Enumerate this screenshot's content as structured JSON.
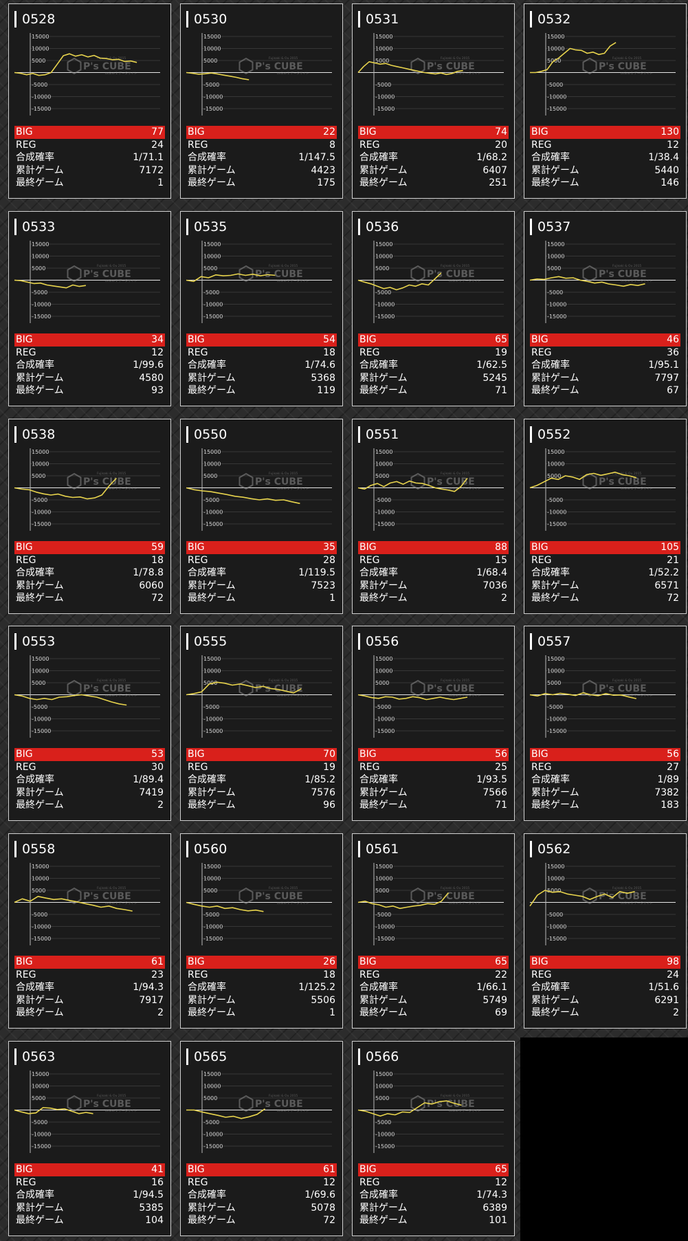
{
  "labels": {
    "big": "BIG",
    "reg": "REG",
    "rate": "合成確率",
    "total": "累計ゲーム",
    "last": "最終ゲーム"
  },
  "watermark": {
    "text": "P's CUBE",
    "small_top": "Fujisaki & Ou 2015",
    "small_bottom": "online 1 データサイト"
  },
  "axis_ticks": [
    "15000",
    "10000",
    "5000",
    "",
    "-5000",
    "-10000",
    "-15000"
  ],
  "colors": {
    "line": "#e8d44d",
    "big_bg": "#d9201b",
    "card_bg": "#1b1b1b"
  },
  "machines": [
    {
      "id": "0528",
      "big": "77",
      "reg": "24",
      "rate": "1/71.1",
      "total": "7172",
      "last": "1",
      "chart_data": {
        "type": "line",
        "ylim": [
          -15000,
          15000
        ],
        "x_end": 0.84,
        "values": [
          0,
          -300,
          -900,
          -400,
          -1200,
          -900,
          0,
          3500,
          7000,
          7800,
          6800,
          7400,
          6500,
          7100,
          6000,
          5800,
          5300,
          5500,
          4600,
          4800,
          4200
        ]
      }
    },
    {
      "id": "0530",
      "big": "22",
      "reg": "8",
      "rate": "1/147.5",
      "total": "4423",
      "last": "175",
      "chart_data": {
        "type": "line",
        "ylim": [
          -15000,
          15000
        ],
        "x_end": 0.43,
        "values": [
          0,
          -300,
          -700,
          -500,
          -200,
          -600,
          -1100,
          -1500,
          -2000,
          -2600,
          -3000
        ]
      }
    },
    {
      "id": "0531",
      "big": "74",
      "reg": "20",
      "rate": "1/68.2",
      "total": "6407",
      "last": "251",
      "chart_data": {
        "type": "line",
        "ylim": [
          -15000,
          15000
        ],
        "x_end": 0.72,
        "values": [
          0,
          2500,
          4500,
          4000,
          3500,
          3800,
          3000,
          2500,
          2000,
          1500,
          1000,
          500,
          0,
          -300,
          -600,
          -200,
          -800,
          -400,
          500,
          800
        ]
      }
    },
    {
      "id": "0532",
      "big": "130",
      "reg": "12",
      "rate": "1/38.4",
      "total": "5440",
      "last": "146",
      "chart_data": {
        "type": "line",
        "ylim": [
          -15000,
          15000
        ],
        "x_end": 0.59,
        "values": [
          0,
          0,
          500,
          1200,
          4500,
          6000,
          8000,
          10000,
          9400,
          9200,
          8000,
          8500,
          7500,
          8000,
          11000,
          12500
        ]
      }
    },
    {
      "id": "0533",
      "big": "34",
      "reg": "12",
      "rate": "1/99.6",
      "total": "4580",
      "last": "93",
      "chart_data": {
        "type": "line",
        "ylim": [
          -15000,
          15000
        ],
        "x_end": 0.49,
        "values": [
          0,
          -200,
          -800,
          -1400,
          -1200,
          -2000,
          -2400,
          -2800,
          -3200,
          -2000,
          -2600,
          -2200
        ]
      }
    },
    {
      "id": "0535",
      "big": "54",
      "reg": "18",
      "rate": "1/74.6",
      "total": "5368",
      "last": "119",
      "chart_data": {
        "type": "line",
        "ylim": [
          -15000,
          15000
        ],
        "x_end": 0.61,
        "values": [
          0,
          -500,
          1500,
          1000,
          2200,
          1800,
          2000,
          2600,
          2000,
          2500,
          1800,
          2300,
          2000
        ]
      }
    },
    {
      "id": "0536",
      "big": "65",
      "reg": "19",
      "rate": "1/62.5",
      "total": "5245",
      "last": "71",
      "chart_data": {
        "type": "line",
        "ylim": [
          -15000,
          15000
        ],
        "x_end": 0.57,
        "values": [
          0,
          -800,
          -1500,
          -2500,
          -3500,
          -3000,
          -4000,
          -3200,
          -2000,
          -2500,
          -1500,
          -2000,
          500,
          3000
        ]
      }
    },
    {
      "id": "0537",
      "big": "46",
      "reg": "36",
      "rate": "1/95.1",
      "total": "7797",
      "last": "67",
      "chart_data": {
        "type": "line",
        "ylim": [
          -15000,
          15000
        ],
        "x_end": 0.79,
        "values": [
          0,
          500,
          300,
          1000,
          1500,
          800,
          1000,
          0,
          -500,
          -1200,
          -800,
          -1600,
          -2000,
          -2500,
          -1800,
          -2200,
          -1500
        ]
      }
    },
    {
      "id": "0538",
      "big": "59",
      "reg": "18",
      "rate": "1/78.8",
      "total": "6060",
      "last": "72",
      "chart_data": {
        "type": "line",
        "ylim": [
          -15000,
          15000
        ],
        "x_end": 0.7,
        "values": [
          0,
          -500,
          -800,
          -1800,
          -2500,
          -3000,
          -2600,
          -3500,
          -4000,
          -3800,
          -4600,
          -4200,
          -3000,
          800,
          4000
        ]
      }
    },
    {
      "id": "0550",
      "big": "35",
      "reg": "28",
      "rate": "1/119.5",
      "total": "7523",
      "last": "1",
      "chart_data": {
        "type": "line",
        "ylim": [
          -15000,
          15000
        ],
        "x_end": 0.78,
        "values": [
          0,
          -800,
          -1300,
          -1600,
          -2200,
          -2800,
          -3500,
          -3900,
          -4500,
          -5000,
          -4600,
          -5200,
          -5000,
          -5800,
          -6500
        ]
      }
    },
    {
      "id": "0551",
      "big": "88",
      "reg": "15",
      "rate": "1/68.4",
      "total": "7036",
      "last": "2",
      "chart_data": {
        "type": "line",
        "ylim": [
          -15000,
          15000
        ],
        "x_end": 0.75,
        "values": [
          0,
          -500,
          1000,
          1800,
          500,
          2000,
          2600,
          1500,
          2800,
          2000,
          1800,
          1000,
          0,
          -500,
          -900,
          -1500,
          500,
          4000
        ]
      }
    },
    {
      "id": "0552",
      "big": "105",
      "reg": "21",
      "rate": "1/52.2",
      "total": "6571",
      "last": "72",
      "chart_data": {
        "type": "line",
        "ylim": [
          -15000,
          15000
        ],
        "x_end": 0.73,
        "values": [
          0,
          1000,
          2500,
          4000,
          3500,
          5000,
          4500,
          3500,
          5500,
          6000,
          5200,
          5800,
          6500,
          5500,
          5000,
          4200
        ]
      }
    },
    {
      "id": "0553",
      "big": "53",
      "reg": "30",
      "rate": "1/89.4",
      "total": "7419",
      "last": "2",
      "chart_data": {
        "type": "line",
        "ylim": [
          -15000,
          15000
        ],
        "x_end": 0.77,
        "values": [
          0,
          -500,
          -1500,
          -2000,
          -1500,
          -2000,
          -1000,
          -800,
          -300,
          0,
          -500,
          -1000,
          -2000,
          -3000,
          -3800,
          -4300
        ]
      }
    },
    {
      "id": "0555",
      "big": "70",
      "reg": "19",
      "rate": "1/85.2",
      "total": "7576",
      "last": "96",
      "chart_data": {
        "type": "line",
        "ylim": [
          -15000,
          15000
        ],
        "x_end": 0.79,
        "values": [
          0,
          500,
          1200,
          4500,
          5200,
          4800,
          4000,
          4500,
          3800,
          3000,
          3500,
          2600,
          2200,
          1500,
          800,
          2500
        ]
      }
    },
    {
      "id": "0556",
      "big": "56",
      "reg": "25",
      "rate": "1/93.5",
      "total": "7566",
      "last": "71",
      "chart_data": {
        "type": "line",
        "ylim": [
          -15000,
          15000
        ],
        "x_end": 0.75,
        "values": [
          0,
          -500,
          -1200,
          -1500,
          -800,
          -1000,
          -1800,
          -1500,
          -800,
          -1200,
          -2000,
          -1500,
          -1000,
          -1600,
          -2000,
          -1500,
          -1000
        ]
      }
    },
    {
      "id": "0557",
      "big": "56",
      "reg": "27",
      "rate": "1/89",
      "total": "7382",
      "last": "183",
      "chart_data": {
        "type": "line",
        "ylim": [
          -15000,
          15000
        ],
        "x_end": 0.73,
        "values": [
          0,
          -500,
          500,
          0,
          600,
          200,
          -300,
          800,
          0,
          -400,
          500,
          -200,
          -100,
          -900,
          -1600
        ]
      }
    },
    {
      "id": "0558",
      "big": "61",
      "reg": "23",
      "rate": "1/94.3",
      "total": "7917",
      "last": "2",
      "chart_data": {
        "type": "line",
        "ylim": [
          -15000,
          15000
        ],
        "x_end": 0.81,
        "values": [
          0,
          1500,
          500,
          2500,
          1800,
          1200,
          1500,
          800,
          200,
          -500,
          -1200,
          -2000,
          -1500,
          -2500,
          -3000,
          -3600
        ]
      }
    },
    {
      "id": "0560",
      "big": "26",
      "reg": "18",
      "rate": "1/125.2",
      "total": "5506",
      "last": "1",
      "chart_data": {
        "type": "line",
        "ylim": [
          -15000,
          15000
        ],
        "x_end": 0.53,
        "values": [
          0,
          -800,
          -1500,
          -2000,
          -1500,
          -2500,
          -2200,
          -3000,
          -3500,
          -3200,
          -3800
        ]
      }
    },
    {
      "id": "0561",
      "big": "65",
      "reg": "22",
      "rate": "1/66.1",
      "total": "5749",
      "last": "69",
      "chart_data": {
        "type": "line",
        "ylim": [
          -15000,
          15000
        ],
        "x_end": 0.62,
        "values": [
          0,
          500,
          -500,
          -1000,
          -2000,
          -1500,
          -2500,
          -2000,
          -1500,
          -1200,
          -500,
          -800,
          500,
          4000
        ]
      }
    },
    {
      "id": "0562",
      "big": "98",
      "reg": "24",
      "rate": "1/51.6",
      "total": "6291",
      "last": "2",
      "chart_data": {
        "type": "line",
        "ylim": [
          -15000,
          15000
        ],
        "x_end": 0.72,
        "values": [
          -1500,
          3000,
          5000,
          4200,
          4500,
          3500,
          3000,
          2500,
          1200,
          2500,
          3500,
          2000,
          4500,
          3800,
          4500
        ]
      }
    },
    {
      "id": "0563",
      "big": "41",
      "reg": "16",
      "rate": "1/94.5",
      "total": "5385",
      "last": "104",
      "chart_data": {
        "type": "line",
        "ylim": [
          -15000,
          15000
        ],
        "x_end": 0.54,
        "values": [
          0,
          -800,
          -1500,
          -1200,
          1000,
          800,
          200,
          500,
          -500,
          -1500,
          -1000,
          -1500
        ]
      }
    },
    {
      "id": "0565",
      "big": "61",
      "reg": "12",
      "rate": "1/69.6",
      "total": "5078",
      "last": "72",
      "chart_data": {
        "type": "line",
        "ylim": [
          -15000,
          15000
        ],
        "x_end": 0.54,
        "values": [
          0,
          0,
          -800,
          -1500,
          -2200,
          -3000,
          -2600,
          -3500,
          -2800,
          -1800,
          500
        ]
      }
    },
    {
      "id": "0566",
      "big": "65",
      "reg": "12",
      "rate": "1/74.3",
      "total": "6389",
      "last": "101",
      "chart_data": {
        "type": "line",
        "ylim": [
          -15000,
          15000
        ],
        "x_end": 0.71,
        "values": [
          0,
          -500,
          -1500,
          -2500,
          -1500,
          -2000,
          -800,
          -1000,
          1000,
          3000,
          2500,
          3500,
          3800,
          2800,
          2000
        ]
      }
    }
  ]
}
